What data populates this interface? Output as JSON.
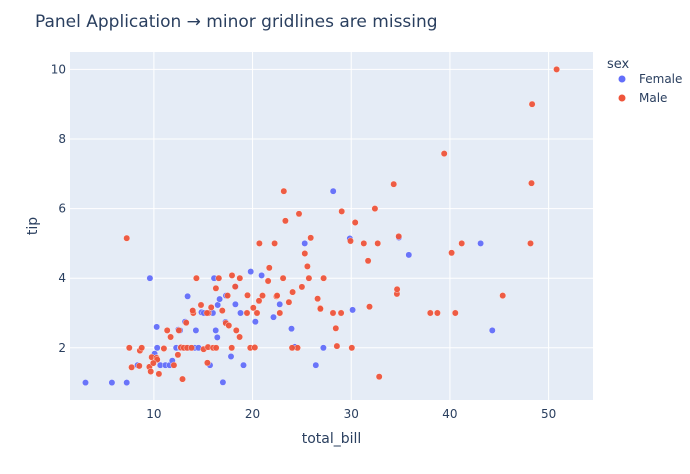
{
  "chart_data": {
    "type": "scatter",
    "title": "Panel Application → minor gridlines are missing",
    "xlabel": "total_bill",
    "ylabel": "tip",
    "xlim": [
      1.5,
      54.5
    ],
    "ylim": [
      0.5,
      10.5
    ],
    "xticks": [
      10,
      20,
      30,
      40,
      50
    ],
    "yticks": [
      2,
      4,
      6,
      8,
      10
    ],
    "grid": true,
    "legend": {
      "title": "sex",
      "placement": "right"
    },
    "colors": {
      "Female": "#636efa",
      "Male": "#ef553b",
      "plot_bg": "#e5ecf6",
      "grid": "#ffffff",
      "text": "#2a3f5f"
    },
    "series": [
      {
        "name": "Female",
        "points": [
          [
            3.07,
            1.0
          ],
          [
            5.75,
            1.0
          ],
          [
            7.25,
            1.0
          ],
          [
            8.35,
            1.5
          ],
          [
            9.6,
            4.0
          ],
          [
            10.07,
            1.83
          ],
          [
            10.29,
            2.6
          ],
          [
            10.33,
            1.67
          ],
          [
            10.65,
            1.5
          ],
          [
            11.17,
            1.5
          ],
          [
            11.59,
            1.5
          ],
          [
            12.26,
            2.0
          ],
          [
            12.48,
            2.52
          ],
          [
            12.66,
            2.5
          ],
          [
            13.0,
            2.0
          ],
          [
            13.13,
            2.0
          ],
          [
            13.16,
            2.75
          ],
          [
            13.42,
            3.48
          ],
          [
            13.51,
            2.0
          ],
          [
            13.94,
            3.06
          ],
          [
            14.15,
            2.0
          ],
          [
            14.26,
            2.5
          ],
          [
            14.52,
            2.0
          ],
          [
            14.83,
            3.02
          ],
          [
            15.06,
            3.0
          ],
          [
            15.98,
            3.0
          ],
          [
            16.27,
            2.5
          ],
          [
            16.43,
            2.3
          ],
          [
            16.47,
            3.23
          ],
          [
            16.99,
            1.01
          ],
          [
            17.31,
            3.5
          ],
          [
            17.82,
            1.75
          ],
          [
            18.29,
            3.76
          ],
          [
            18.78,
            3.0
          ],
          [
            19.08,
            1.5
          ],
          [
            19.81,
            4.19
          ],
          [
            20.29,
            2.75
          ],
          [
            20.92,
            4.08
          ],
          [
            22.12,
            2.88
          ],
          [
            23.95,
            2.55
          ],
          [
            24.27,
            2.03
          ],
          [
            25.28,
            5.0
          ],
          [
            26.41,
            1.5
          ],
          [
            27.18,
            2.0
          ],
          [
            28.17,
            6.5
          ],
          [
            29.85,
            5.14
          ],
          [
            30.14,
            3.09
          ],
          [
            34.83,
            5.17
          ],
          [
            35.83,
            4.67
          ],
          [
            43.11,
            5.0
          ],
          [
            44.3,
            2.5
          ],
          [
            16.66,
            3.4
          ],
          [
            11.87,
            1.63
          ],
          [
            10.34,
            2.0
          ],
          [
            12.69,
            2.0
          ],
          [
            18.26,
            3.25
          ],
          [
            16.1,
            4.0
          ],
          [
            22.75,
            3.25
          ],
          [
            17.26,
            2.74
          ],
          [
            15.69,
            1.5
          ]
        ]
      },
      {
        "name": "Male",
        "points": [
          [
            7.25,
            5.15
          ],
          [
            7.51,
            2.0
          ],
          [
            7.74,
            1.44
          ],
          [
            8.52,
            1.48
          ],
          [
            8.58,
            1.92
          ],
          [
            9.55,
            1.45
          ],
          [
            9.68,
            1.32
          ],
          [
            9.78,
            1.73
          ],
          [
            10.27,
            1.71
          ],
          [
            10.34,
            1.66
          ],
          [
            10.51,
            1.25
          ],
          [
            11.35,
            2.5
          ],
          [
            11.69,
            2.31
          ],
          [
            12.03,
            1.5
          ],
          [
            12.43,
            1.8
          ],
          [
            12.54,
            2.5
          ],
          [
            12.74,
            2.01
          ],
          [
            13.03,
            2.0
          ],
          [
            13.37,
            2.0
          ],
          [
            13.81,
            2.0
          ],
          [
            14.0,
            3.0
          ],
          [
            14.31,
            4.0
          ],
          [
            14.78,
            3.23
          ],
          [
            15.04,
            1.96
          ],
          [
            15.48,
            2.02
          ],
          [
            15.81,
            3.16
          ],
          [
            16.0,
            2.0
          ],
          [
            16.29,
            3.71
          ],
          [
            16.58,
            4.0
          ],
          [
            16.93,
            3.07
          ],
          [
            17.29,
            2.71
          ],
          [
            17.59,
            2.64
          ],
          [
            17.92,
            4.08
          ],
          [
            18.24,
            3.76
          ],
          [
            18.35,
            2.5
          ],
          [
            18.69,
            2.31
          ],
          [
            19.44,
            3.0
          ],
          [
            19.77,
            2.0
          ],
          [
            20.08,
            3.15
          ],
          [
            20.45,
            3.0
          ],
          [
            20.65,
            3.35
          ],
          [
            20.69,
            5.0
          ],
          [
            21.01,
            3.5
          ],
          [
            21.58,
            3.92
          ],
          [
            22.23,
            5.0
          ],
          [
            22.42,
            3.48
          ],
          [
            22.76,
            3.0
          ],
          [
            23.1,
            4.0
          ],
          [
            23.33,
            5.65
          ],
          [
            23.68,
            3.31
          ],
          [
            24.06,
            3.6
          ],
          [
            24.55,
            2.0
          ],
          [
            24.71,
            5.85
          ],
          [
            25.0,
            3.75
          ],
          [
            25.29,
            4.71
          ],
          [
            25.56,
            4.34
          ],
          [
            25.89,
            5.16
          ],
          [
            26.86,
            3.14
          ],
          [
            26.88,
            3.12
          ],
          [
            27.2,
            4.0
          ],
          [
            28.15,
            3.0
          ],
          [
            28.44,
            2.56
          ],
          [
            28.55,
            2.05
          ],
          [
            28.97,
            3.0
          ],
          [
            29.03,
            5.92
          ],
          [
            30.06,
            2.0
          ],
          [
            30.4,
            5.6
          ],
          [
            31.27,
            5.0
          ],
          [
            31.71,
            4.5
          ],
          [
            32.4,
            6.0
          ],
          [
            32.68,
            5.0
          ],
          [
            32.83,
            1.17
          ],
          [
            34.3,
            6.7
          ],
          [
            34.63,
            3.55
          ],
          [
            34.81,
            5.2
          ],
          [
            38.01,
            3.0
          ],
          [
            38.73,
            3.0
          ],
          [
            39.42,
            7.58
          ],
          [
            40.17,
            4.73
          ],
          [
            40.55,
            3.0
          ],
          [
            41.19,
            5.0
          ],
          [
            45.35,
            3.5
          ],
          [
            48.17,
            5.0
          ],
          [
            48.27,
            6.73
          ],
          [
            48.33,
            9.0
          ],
          [
            50.81,
            10.0
          ],
          [
            23.17,
            6.5
          ],
          [
            26.59,
            3.41
          ],
          [
            13.28,
            2.72
          ],
          [
            9.94,
            1.56
          ],
          [
            11.02,
            1.98
          ],
          [
            15.42,
            1.57
          ],
          [
            17.47,
            3.5
          ],
          [
            19.49,
            3.51
          ],
          [
            20.23,
            2.01
          ],
          [
            22.49,
            3.5
          ],
          [
            24.01,
            2.0
          ],
          [
            29.93,
            5.07
          ],
          [
            13.93,
            3.07
          ],
          [
            18.71,
            4.0
          ],
          [
            21.7,
            4.3
          ],
          [
            15.53,
            3.0
          ],
          [
            12.9,
            1.1
          ],
          [
            8.77,
            2.0
          ],
          [
            16.31,
            2.0
          ],
          [
            25.71,
            4.0
          ],
          [
            34.65,
            3.68
          ],
          [
            15.38,
            3.0
          ],
          [
            31.85,
            3.18
          ],
          [
            17.89,
            2.0
          ]
        ]
      }
    ]
  }
}
